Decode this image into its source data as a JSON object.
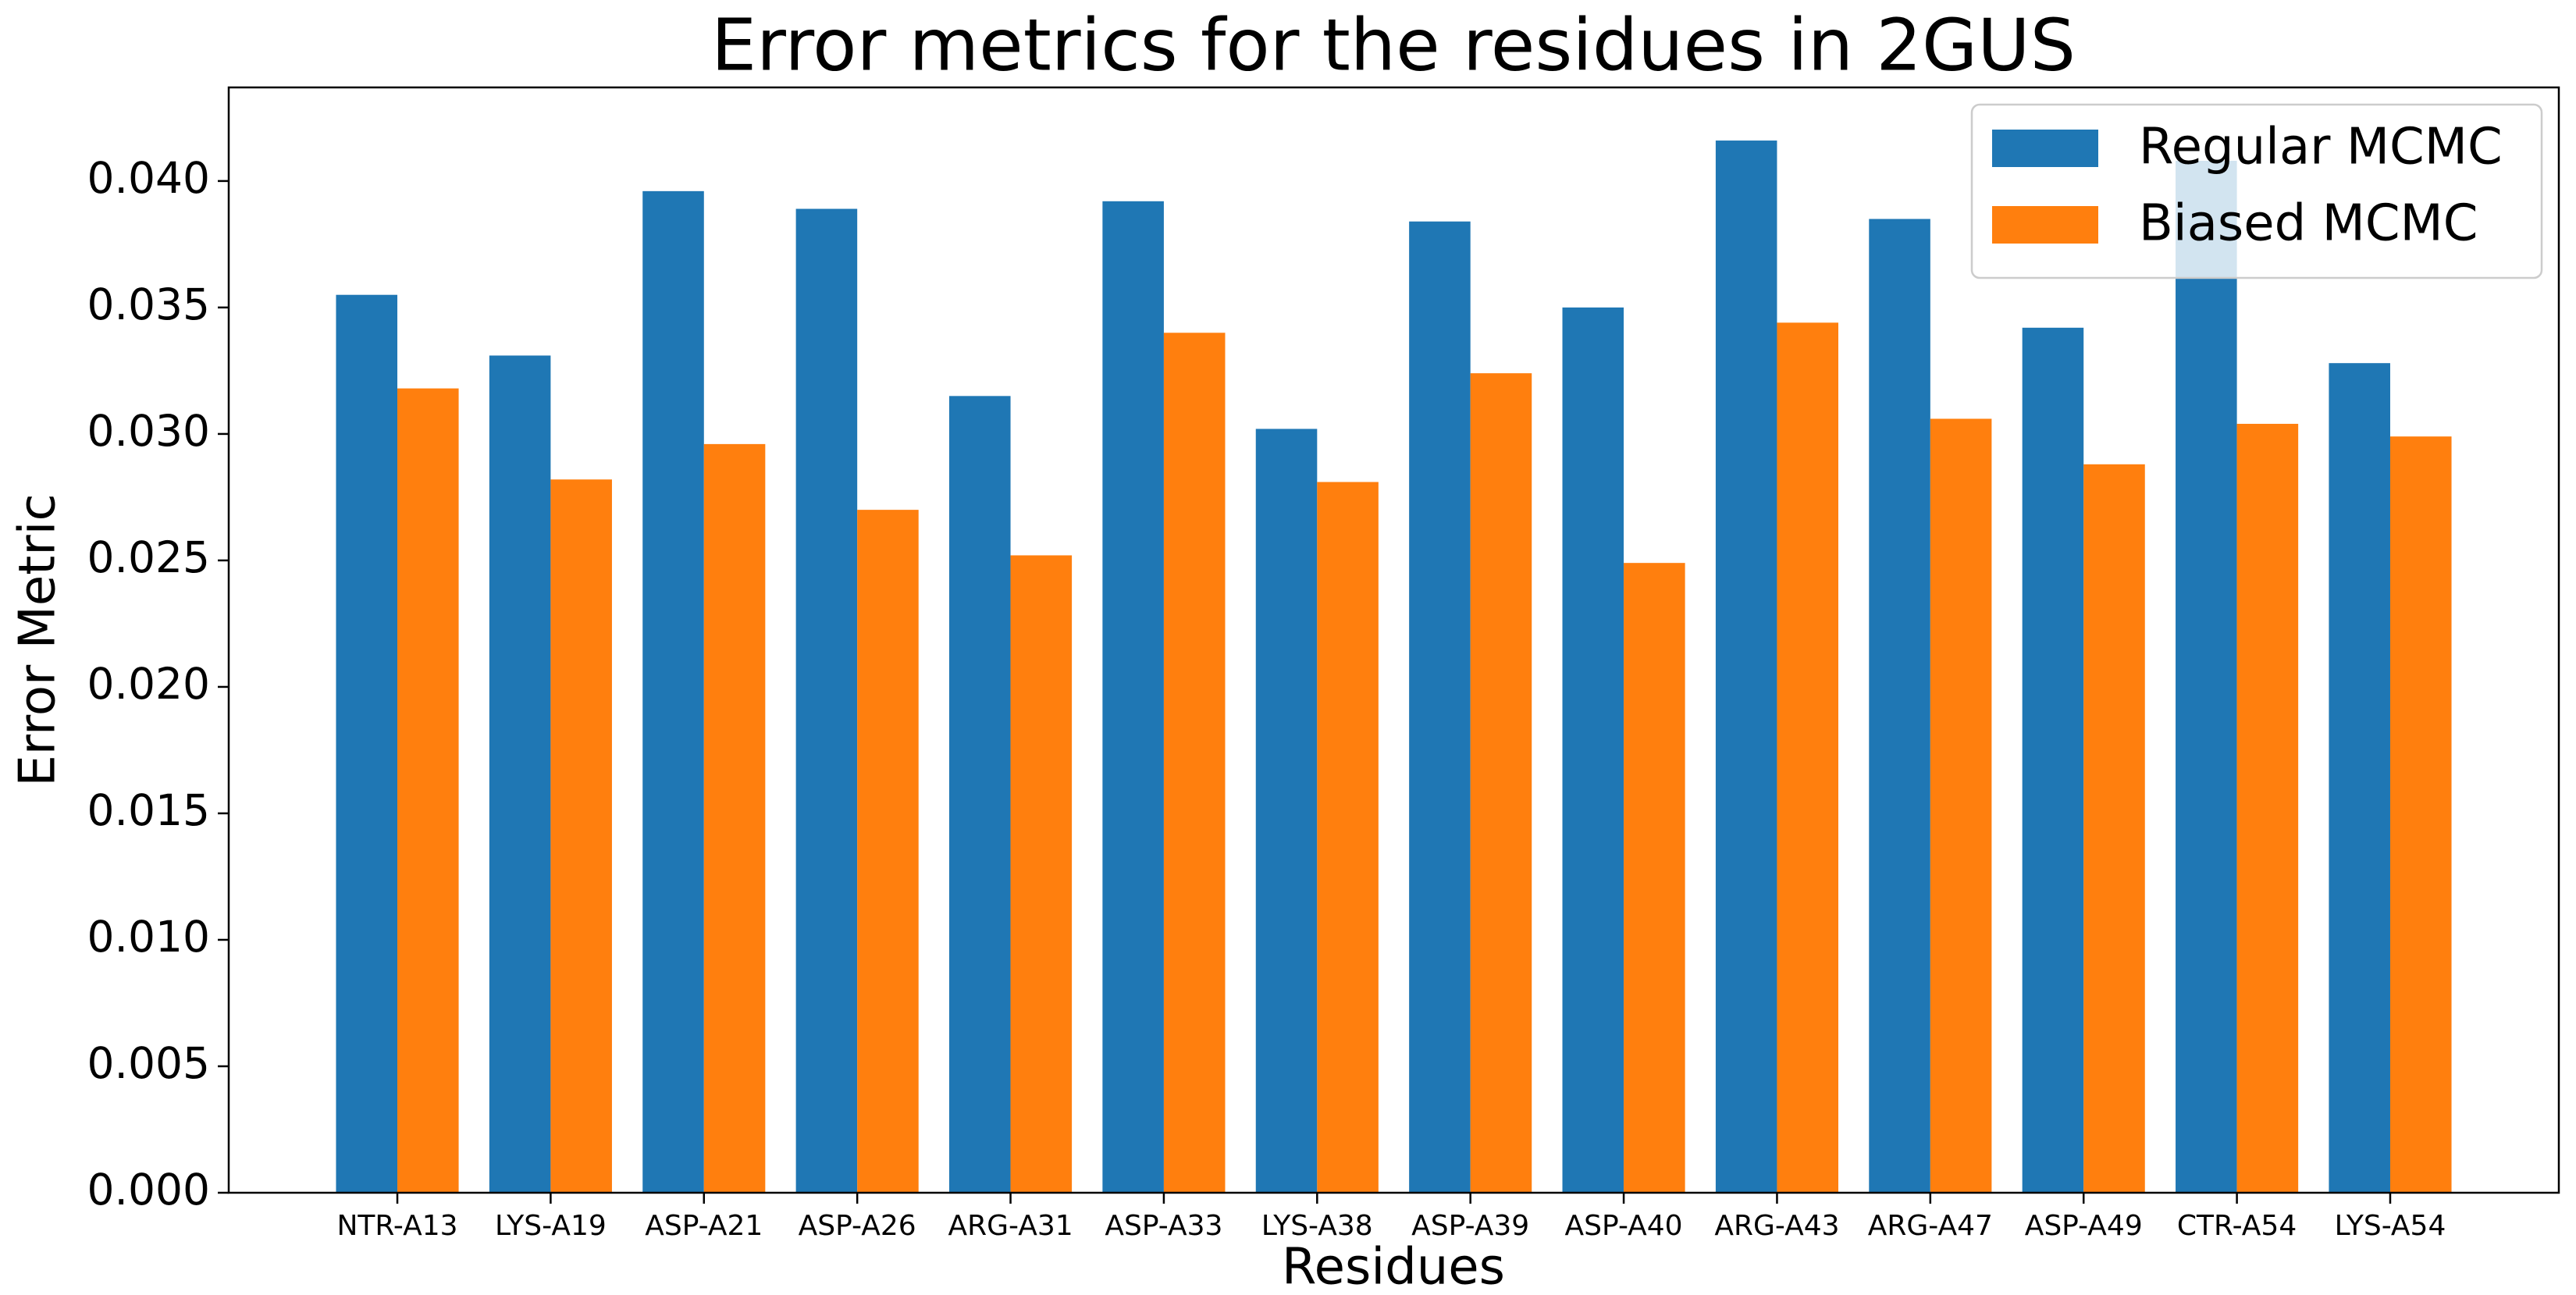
{
  "chart_data": {
    "type": "bar",
    "title": "Error metrics for the residues in 2GUS",
    "x_label": "Residues",
    "y_label": "Error Metric",
    "categories": [
      "NTR-A13",
      "LYS-A19",
      "ASP-A21",
      "ASP-A26",
      "ARG-A31",
      "ASP-A33",
      "LYS-A38",
      "ASP-A39",
      "ASP-A40",
      "ARG-A43",
      "ARG-A47",
      "ASP-A49",
      "CTR-A54",
      "LYS-A54"
    ],
    "series": [
      {
        "name": "Regular MCMC",
        "color": "#1f77b4",
        "values": [
          0.0355,
          0.0331,
          0.0396,
          0.0389,
          0.0315,
          0.0392,
          0.0302,
          0.0384,
          0.035,
          0.0416,
          0.0385,
          0.0342,
          0.0408,
          0.0328
        ]
      },
      {
        "name": "Biased MCMC",
        "color": "#ff7f0e",
        "values": [
          0.0318,
          0.0282,
          0.0296,
          0.027,
          0.0252,
          0.034,
          0.0281,
          0.0324,
          0.0249,
          0.0344,
          0.0306,
          0.0288,
          0.0304,
          0.0299
        ]
      }
    ],
    "ylim": [
      0,
      0.0437
    ],
    "yticks": [
      {
        "value": 0,
        "label": "0.000"
      },
      {
        "value": 0.005,
        "label": "0.005"
      },
      {
        "value": 0.01,
        "label": "0.010"
      },
      {
        "value": 0.015,
        "label": "0.015"
      },
      {
        "value": 0.02,
        "label": "0.020"
      },
      {
        "value": 0.025,
        "label": "0.025"
      },
      {
        "value": 0.03,
        "label": "0.030"
      },
      {
        "value": 0.035,
        "label": "0.035"
      },
      {
        "value": 0.04,
        "label": "0.040"
      }
    ],
    "legend": "upper right"
  }
}
